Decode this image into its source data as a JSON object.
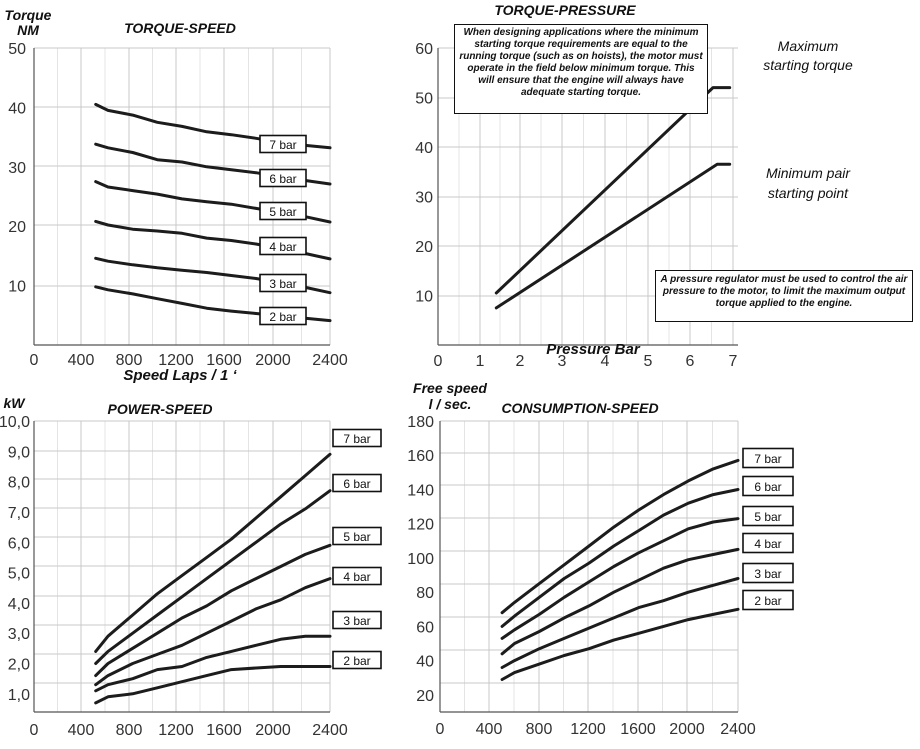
{
  "chart_data": [
    {
      "type": "line",
      "title": "TORQUE-SPEED",
      "ylabel": "Torque",
      "ylabel_unit": "NM",
      "xlabel": "Speed Laps / 1 ‘",
      "xlim": [
        0,
        2400
      ],
      "ylim": [
        0,
        50
      ],
      "x_ticks": [
        "0",
        "400",
        "800",
        "1200",
        "1600",
        "2000",
        "2400"
      ],
      "y_ticks": [
        "10",
        "20",
        "30",
        "40",
        "50"
      ],
      "grid": true,
      "series": [
        {
          "name": "7 bar",
          "x": [
            500,
            600,
            800,
            1000,
            1200,
            1400,
            1600,
            1800,
            2000,
            2200,
            2400
          ],
          "y": [
            40.5,
            39.5,
            38.7,
            37.5,
            36.8,
            35.9,
            35.4,
            34.8,
            34.1,
            33.6,
            33.2
          ]
        },
        {
          "name": "6 bar",
          "x": [
            500,
            600,
            800,
            1000,
            1200,
            1400,
            1600,
            1800,
            2000,
            2200,
            2400
          ],
          "y": [
            33.8,
            33.2,
            32.4,
            31.2,
            30.8,
            30.0,
            29.5,
            29.0,
            28.3,
            27.7,
            27.1
          ]
        },
        {
          "name": "5 bar",
          "x": [
            500,
            600,
            800,
            1000,
            1200,
            1400,
            1600,
            1800,
            2000,
            2200,
            2400
          ],
          "y": [
            27.5,
            26.6,
            26.0,
            25.4,
            24.6,
            24.1,
            23.7,
            23.0,
            22.3,
            21.6,
            20.7
          ]
        },
        {
          "name": "4 bar",
          "x": [
            500,
            600,
            800,
            1000,
            1200,
            1400,
            1600,
            1800,
            2000,
            2200,
            2400
          ],
          "y": [
            20.8,
            20.2,
            19.5,
            19.2,
            18.8,
            18.0,
            17.6,
            17.0,
            16.2,
            15.4,
            14.5
          ]
        },
        {
          "name": "3 bar",
          "x": [
            500,
            600,
            800,
            1000,
            1200,
            1400,
            1600,
            1800,
            2000,
            2200,
            2400
          ],
          "y": [
            14.6,
            14.1,
            13.5,
            13.0,
            12.6,
            12.2,
            11.7,
            11.2,
            10.5,
            9.7,
            8.8
          ]
        },
        {
          "name": "2 bar",
          "x": [
            500,
            600,
            800,
            1000,
            1200,
            1400,
            1600,
            1800,
            2000,
            2200,
            2400
          ],
          "y": [
            9.8,
            9.3,
            8.6,
            7.8,
            7.0,
            6.2,
            5.7,
            5.3,
            4.9,
            4.5,
            4.1
          ]
        }
      ]
    },
    {
      "type": "line",
      "title": "TORQUE-PRESSURE",
      "xlabel": "Pressure Bar",
      "xlim": [
        0,
        7.2
      ],
      "ylim": [
        0,
        60
      ],
      "x_ticks": [
        "0",
        "1",
        "2",
        "3",
        "4",
        "5",
        "6",
        "7"
      ],
      "y_ticks": [
        "10",
        "20",
        "30",
        "40",
        "50",
        "60"
      ],
      "grid": true,
      "series": [
        {
          "name": "Maximum starting torque",
          "x": [
            1.4,
            6.6,
            7.0
          ],
          "y": [
            10.5,
            52,
            52
          ]
        },
        {
          "name": "Minimum pair starting point",
          "x": [
            1.4,
            6.7,
            7.0
          ],
          "y": [
            7.5,
            36.5,
            36.5
          ]
        }
      ],
      "annotations": {
        "top_note": "When designing applications where the minimum starting torque requirements are equal to the running torque (such as on hoists), the motor must operate in the field below minimum torque. This will ensure that the engine will always have adequate starting torque.",
        "bottom_note": "A pressure regulator must be used to control the air pressure to the motor, to limit the maximum output torque applied to the engine.",
        "max_label_1": "Maximum",
        "max_label_2": "starting torque",
        "min_label_1": "Minimum pair",
        "min_label_2": "starting point"
      }
    },
    {
      "type": "line",
      "title": "POWER-SPEED",
      "ylabel": "kW",
      "xlim": [
        0,
        2400
      ],
      "ylim": [
        0.4,
        10
      ],
      "x_ticks": [
        "0",
        "400",
        "800",
        "1200",
        "1600",
        "2000",
        "2400"
      ],
      "y_ticks": [
        "1,0",
        "2,0",
        "3,0",
        "4,0",
        "5,0",
        "6,0",
        "7,0",
        "8,0",
        "9,0",
        "10,0"
      ],
      "grid": true,
      "series": [
        {
          "name": "7 bar",
          "x": [
            500,
            600,
            800,
            1000,
            1200,
            1400,
            1600,
            1800,
            2000,
            2200,
            2400
          ],
          "y": [
            2.4,
            2.9,
            3.6,
            4.3,
            4.9,
            5.5,
            6.1,
            6.8,
            7.5,
            8.2,
            8.9
          ]
        },
        {
          "name": "6 bar",
          "x": [
            500,
            600,
            800,
            1000,
            1200,
            1400,
            1600,
            1800,
            2000,
            2200,
            2400
          ],
          "y": [
            2.0,
            2.4,
            3.0,
            3.6,
            4.2,
            4.8,
            5.4,
            6.0,
            6.6,
            7.1,
            7.7
          ]
        },
        {
          "name": "5 bar",
          "x": [
            500,
            600,
            800,
            1000,
            1200,
            1400,
            1600,
            1800,
            2000,
            2200,
            2400
          ],
          "y": [
            1.6,
            2.0,
            2.5,
            3.0,
            3.5,
            3.9,
            4.4,
            4.8,
            5.2,
            5.6,
            5.9
          ]
        },
        {
          "name": "4 bar",
          "x": [
            500,
            600,
            800,
            1000,
            1200,
            1400,
            1600,
            1800,
            2000,
            2200,
            2400
          ],
          "y": [
            1.3,
            1.6,
            2.0,
            2.3,
            2.6,
            3.0,
            3.4,
            3.8,
            4.1,
            4.5,
            4.8
          ]
        },
        {
          "name": "3 bar",
          "x": [
            500,
            600,
            800,
            1000,
            1200,
            1400,
            1600,
            1800,
            2000,
            2200,
            2400
          ],
          "y": [
            1.1,
            1.3,
            1.5,
            1.8,
            1.9,
            2.2,
            2.4,
            2.6,
            2.8,
            2.9,
            2.9
          ]
        },
        {
          "name": "2 bar",
          "x": [
            500,
            600,
            800,
            1000,
            1200,
            1400,
            1600,
            1800,
            2000,
            2200,
            2400
          ],
          "y": [
            0.7,
            0.9,
            1.0,
            1.2,
            1.4,
            1.6,
            1.8,
            1.85,
            1.9,
            1.9,
            1.9
          ]
        }
      ]
    },
    {
      "type": "line",
      "title": "CONSUMPTION-SPEED",
      "ylabel": "Free speed",
      "ylabel_unit": "l / sec.",
      "xlim": [
        0,
        2400
      ],
      "ylim": [
        10,
        180
      ],
      "x_ticks": [
        "0",
        "400",
        "800",
        "1200",
        "1600",
        "2000",
        "2400"
      ],
      "y_ticks": [
        "20",
        "40",
        "60",
        "80",
        "100",
        "120",
        "140",
        "160",
        "180"
      ],
      "grid": true,
      "series": [
        {
          "name": "7 bar",
          "x": [
            500,
            600,
            800,
            1000,
            1200,
            1400,
            1600,
            1800,
            2000,
            2200,
            2400
          ],
          "y": [
            68,
            74,
            85,
            96,
            107,
            118,
            128,
            137,
            145,
            152,
            157
          ]
        },
        {
          "name": "6 bar",
          "x": [
            500,
            600,
            800,
            1000,
            1200,
            1400,
            1600,
            1800,
            2000,
            2200,
            2400
          ],
          "y": [
            60,
            66,
            77,
            88,
            97,
            107,
            116,
            125,
            132,
            137,
            140
          ]
        },
        {
          "name": "5 bar",
          "x": [
            500,
            600,
            800,
            1000,
            1200,
            1400,
            1600,
            1800,
            2000,
            2200,
            2400
          ],
          "y": [
            53,
            58,
            67,
            77,
            86,
            95,
            103,
            110,
            117,
            121,
            123
          ]
        },
        {
          "name": "4 bar",
          "x": [
            500,
            600,
            800,
            1000,
            1200,
            1400,
            1600,
            1800,
            2000,
            2200,
            2400
          ],
          "y": [
            44,
            50,
            57,
            65,
            72,
            80,
            87,
            94,
            99,
            102,
            105
          ]
        },
        {
          "name": "3 bar",
          "x": [
            500,
            600,
            800,
            1000,
            1200,
            1400,
            1600,
            1800,
            2000,
            2200,
            2400
          ],
          "y": [
            36,
            40,
            47,
            53,
            59,
            65,
            71,
            75,
            80,
            84,
            88
          ]
        },
        {
          "name": "2 bar",
          "x": [
            500,
            600,
            800,
            1000,
            1200,
            1400,
            1600,
            1800,
            2000,
            2200,
            2400
          ],
          "y": [
            29,
            33,
            38,
            43,
            47,
            52,
            56,
            60,
            64,
            67,
            70
          ]
        }
      ]
    }
  ]
}
